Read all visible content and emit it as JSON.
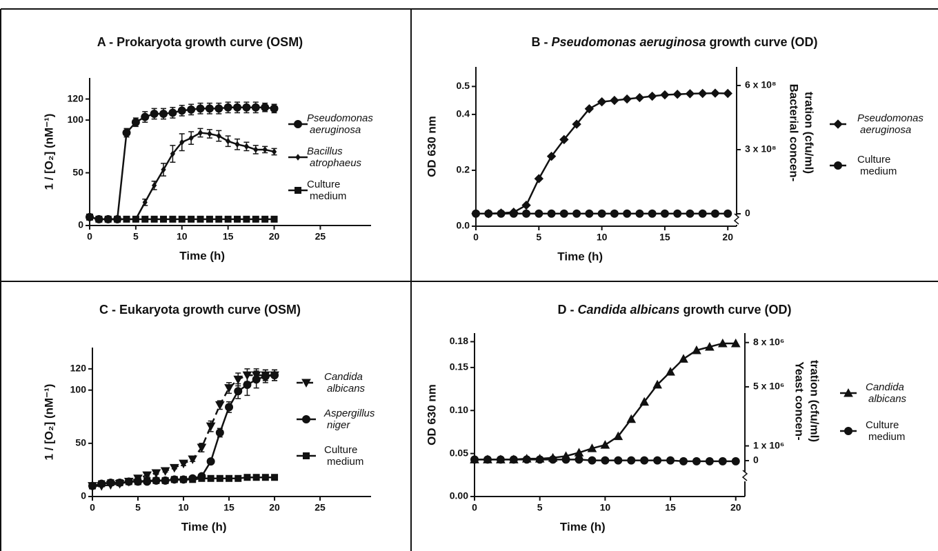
{
  "chart_data": [
    {
      "type": "line",
      "title": [
        "A - Prokaryota growth curve (OSM)"
      ],
      "xlabel": "Time (h)",
      "ylabel": "1 / [O₂] (nM⁻¹)",
      "x": [
        0,
        1,
        2,
        3,
        4,
        5,
        6,
        7,
        8,
        9,
        10,
        11,
        12,
        13,
        14,
        15,
        16,
        17,
        18,
        19,
        20
      ],
      "xlim": [
        0,
        30.5
      ],
      "xticks": [
        0,
        5,
        10,
        15,
        20,
        25
      ],
      "ylim": [
        0,
        140
      ],
      "yticks": [
        0,
        50,
        100,
        120
      ],
      "legend": "right",
      "series": [
        {
          "name": "Pseudomonas aeruginosa",
          "color": "#111111",
          "marker": "circle",
          "italic": true,
          "values": [
            8,
            6,
            6,
            6,
            88,
            98,
            103,
            106,
            106,
            107,
            109,
            110,
            111,
            111,
            111,
            112,
            112,
            112,
            112,
            112,
            111
          ],
          "errors": [
            0,
            0,
            0,
            0,
            4,
            4,
            5,
            5,
            5,
            5,
            5,
            5,
            5,
            5,
            5,
            5,
            5,
            5,
            5,
            4,
            4
          ]
        },
        {
          "name": "Bacillus atrophaeus",
          "color": "#111111",
          "marker": "small-diamond",
          "italic": true,
          "values": [
            8,
            6,
            6,
            6,
            6,
            6,
            22,
            38,
            53,
            68,
            79,
            83,
            88,
            87,
            85,
            80,
            77,
            75,
            72,
            72,
            70
          ],
          "errors": [
            0,
            0,
            0,
            0,
            0,
            0,
            3,
            4,
            6,
            8,
            8,
            6,
            4,
            4,
            5,
            5,
            5,
            4,
            4,
            3,
            3
          ]
        },
        {
          "name": "Culture medium",
          "color": "#111111",
          "marker": "square",
          "italic": false,
          "values": [
            8,
            6,
            6,
            6,
            6,
            6,
            6,
            6,
            6,
            6,
            6,
            6,
            6,
            6,
            6,
            6,
            6,
            6,
            6,
            6,
            6
          ]
        }
      ]
    },
    {
      "type": "line",
      "title": [
        "B - ",
        "Pseudomonas aeruginosa",
        " growth curve (OD)"
      ],
      "xlabel": "Time (h)",
      "ylabel": "OD 630 nm",
      "y2label": [
        "Bacterial concen-",
        "tration (cfu/ml)"
      ],
      "x": [
        0,
        1,
        2,
        3,
        4,
        5,
        6,
        7,
        8,
        9,
        10,
        11,
        12,
        13,
        14,
        15,
        16,
        17,
        18,
        19,
        20
      ],
      "xlim": [
        0,
        20.7
      ],
      "xticks": [
        0,
        5,
        10,
        15,
        20
      ],
      "ylim": [
        0,
        0.57
      ],
      "yticks": [
        {
          "value": 0,
          "label": "0.0"
        },
        0.2,
        0.4,
        0.5
      ],
      "y2lim": [
        -58000000,
        687000000
      ],
      "y2ticks": [
        0,
        {
          "value": 300000000,
          "label": "3 x 10⁸"
        },
        {
          "value": 600000000,
          "label": "6 x 10⁸"
        }
      ],
      "legend": "right",
      "series": [
        {
          "name": "Pseudomonas aeruginosa",
          "color": "#111111",
          "marker": "diamond",
          "italic": true,
          "values": [
            0.045,
            0.045,
            0.047,
            0.05,
            0.075,
            0.17,
            0.25,
            0.31,
            0.365,
            0.42,
            0.445,
            0.45,
            0.455,
            0.46,
            0.465,
            0.47,
            0.472,
            0.474,
            0.475,
            0.476,
            0.475
          ]
        },
        {
          "name": "Culture medium",
          "color": "#111111",
          "marker": "circle",
          "italic": false,
          "values": [
            0.045,
            0.045,
            0.045,
            0.045,
            0.045,
            0.045,
            0.045,
            0.045,
            0.045,
            0.045,
            0.045,
            0.045,
            0.045,
            0.045,
            0.045,
            0.045,
            0.045,
            0.045,
            0.045,
            0.045,
            0.045
          ]
        }
      ]
    },
    {
      "type": "line",
      "title": [
        "C - Eukaryota growth curve (OSM)"
      ],
      "xlabel": "Time (h)",
      "ylabel": "1 / [O₂] (nM⁻¹)",
      "x": [
        0,
        1,
        2,
        3,
        4,
        5,
        6,
        7,
        8,
        9,
        10,
        11,
        12,
        13,
        14,
        15,
        16,
        17,
        18,
        19,
        20
      ],
      "xlim": [
        0,
        30.6
      ],
      "xticks": [
        0,
        5,
        10,
        15,
        20,
        25
      ],
      "ylim": [
        0,
        140
      ],
      "yticks": [
        0,
        50,
        100,
        120
      ],
      "legend": "right",
      "series": [
        {
          "name": "Candida albicans",
          "color": "#111111",
          "marker": "triangle-down",
          "italic": true,
          "dash": true,
          "values": [
            10,
            10,
            11,
            12,
            14,
            17,
            20,
            22,
            24,
            27,
            31,
            35,
            46,
            66,
            86,
            102,
            110,
            114,
            114,
            114,
            114
          ],
          "errors": [
            0,
            0,
            0,
            0,
            1,
            1,
            1,
            1,
            1,
            1,
            2,
            2,
            4,
            5,
            4,
            5,
            6,
            6,
            6,
            5,
            5
          ]
        },
        {
          "name": "Aspergillus niger",
          "color": "#111111",
          "marker": "circle",
          "italic": true,
          "values": [
            10,
            12,
            13,
            13,
            14,
            14,
            14,
            15,
            15,
            16,
            16,
            17,
            19,
            33,
            60,
            84,
            99,
            105,
            110,
            113,
            114
          ],
          "errors": [
            0,
            0,
            0,
            0,
            0,
            0,
            0,
            0,
            0,
            0,
            0,
            0,
            1,
            2,
            4,
            5,
            7,
            10,
            8,
            6,
            5
          ]
        },
        {
          "name": "Culture medium",
          "color": "#111111",
          "marker": "square",
          "italic": false,
          "values": [
            10,
            12,
            13,
            13,
            14,
            14,
            15,
            15,
            15,
            16,
            16,
            16,
            17,
            17,
            17,
            17,
            17,
            18,
            18,
            18,
            18
          ]
        }
      ]
    },
    {
      "type": "line",
      "title": [
        "D - ",
        "Candida albicans",
        " growth curve (OD)"
      ],
      "xlabel": "Time (h)",
      "ylabel": "OD 630 nm",
      "y2label": [
        "Yeast concen-",
        "tration (cfu/ml)"
      ],
      "x": [
        0,
        1,
        2,
        3,
        4,
        5,
        6,
        7,
        8,
        9,
        10,
        11,
        12,
        13,
        14,
        15,
        16,
        17,
        18,
        19,
        20
      ],
      "xlim": [
        0,
        20.7
      ],
      "xticks": [
        0,
        5,
        10,
        15,
        20
      ],
      "ylim": [
        0,
        0.19
      ],
      "yticks": [
        {
          "value": 0,
          "label": "0.00"
        },
        0.05,
        {
          "value": 0.1,
          "label": "0.10"
        },
        0.15,
        0.18
      ],
      "y2lim": [
        -2430000,
        8640000
      ],
      "y2ticks": [
        0,
        {
          "value": 1000000,
          "label": "1 x 10⁶"
        },
        {
          "value": 5000000,
          "label": "5 x 10⁶"
        },
        {
          "value": 8000000,
          "label": "8 x 10⁶"
        }
      ],
      "legend": "right",
      "series": [
        {
          "name": "Candida albicans",
          "color": "#111111",
          "marker": "triangle-up",
          "italic": true,
          "values": [
            0.043,
            0.043,
            0.043,
            0.043,
            0.044,
            0.044,
            0.045,
            0.047,
            0.051,
            0.056,
            0.06,
            0.07,
            0.09,
            0.11,
            0.13,
            0.145,
            0.16,
            0.17,
            0.174,
            0.178,
            0.178
          ]
        },
        {
          "name": "Culture medium",
          "color": "#111111",
          "marker": "circle",
          "italic": false,
          "values": [
            0.043,
            0.043,
            0.043,
            0.043,
            0.043,
            0.043,
            0.043,
            0.043,
            0.043,
            0.042,
            0.042,
            0.042,
            0.042,
            0.042,
            0.042,
            0.042,
            0.041,
            0.041,
            0.041,
            0.041,
            0.041
          ]
        }
      ]
    }
  ]
}
